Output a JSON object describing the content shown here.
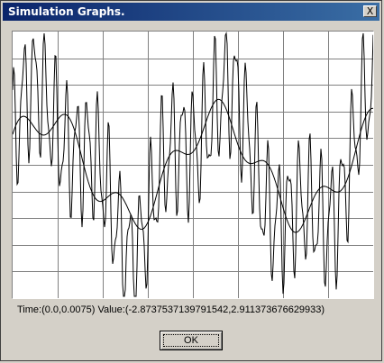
{
  "window": {
    "title": "Simulation Graphs.",
    "close_label": "X"
  },
  "graph": {
    "grid": true,
    "grid_columns": 8,
    "grid_rows": 10,
    "series": [
      {
        "name": "",
        "color": "#000000"
      },
      {
        "name": "",
        "color": "#000000"
      }
    ]
  },
  "status": {
    "readout": "Time:(0.0,0.0075) Value:(-2.8737537139791542,2.911373676629933)"
  },
  "buttons": {
    "ok_label": "OK"
  }
}
